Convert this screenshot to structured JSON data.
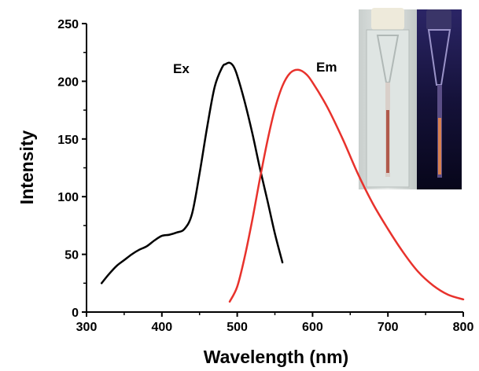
{
  "chart_data": {
    "type": "line",
    "xlabel": "Wavelength (nm)",
    "ylabel": "Intensity",
    "xlim": [
      300,
      800
    ],
    "ylim": [
      0,
      250
    ],
    "xticks": [
      300,
      400,
      500,
      600,
      700,
      800
    ],
    "yticks": [
      0,
      50,
      100,
      150,
      200,
      250
    ],
    "grid": false,
    "legend": "none",
    "series": [
      {
        "name": "Ex",
        "color": "#000000",
        "points": [
          [
            320,
            25
          ],
          [
            330,
            33
          ],
          [
            340,
            40
          ],
          [
            350,
            45
          ],
          [
            360,
            50
          ],
          [
            370,
            54
          ],
          [
            380,
            57
          ],
          [
            390,
            62
          ],
          [
            400,
            66
          ],
          [
            410,
            67
          ],
          [
            420,
            69
          ],
          [
            430,
            72
          ],
          [
            440,
            85
          ],
          [
            450,
            120
          ],
          [
            460,
            160
          ],
          [
            470,
            195
          ],
          [
            480,
            212
          ],
          [
            485,
            215
          ],
          [
            490,
            216
          ],
          [
            495,
            213
          ],
          [
            500,
            205
          ],
          [
            510,
            182
          ],
          [
            520,
            155
          ],
          [
            530,
            125
          ],
          [
            540,
            97
          ],
          [
            550,
            68
          ],
          [
            560,
            43
          ]
        ]
      },
      {
        "name": "Em",
        "color": "#e8322c",
        "points": [
          [
            490,
            9
          ],
          [
            500,
            22
          ],
          [
            510,
            48
          ],
          [
            520,
            80
          ],
          [
            530,
            115
          ],
          [
            540,
            148
          ],
          [
            550,
            176
          ],
          [
            560,
            196
          ],
          [
            570,
            207
          ],
          [
            580,
            210
          ],
          [
            590,
            207
          ],
          [
            600,
            199
          ],
          [
            620,
            177
          ],
          [
            640,
            150
          ],
          [
            660,
            120
          ],
          [
            680,
            94
          ],
          [
            700,
            72
          ],
          [
            720,
            52
          ],
          [
            740,
            35
          ],
          [
            760,
            23
          ],
          [
            780,
            15
          ],
          [
            800,
            11
          ]
        ]
      }
    ]
  }
}
